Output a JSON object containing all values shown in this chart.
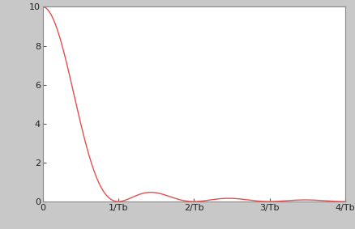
{
  "xlim": [
    0,
    4
  ],
  "ylim": [
    0,
    10
  ],
  "line_color": "#e05050",
  "line_width": 1.0,
  "background_color": "#c8c8c8",
  "plot_bg_color": "#ffffff",
  "yticks": [
    0,
    2,
    4,
    6,
    8,
    10
  ],
  "xtick_labels": [
    "0",
    "1/Tb",
    "2/Tb",
    "3/Tb",
    "4/Tb"
  ],
  "xtick_positions": [
    0,
    1,
    2,
    3,
    4
  ],
  "figsize": [
    4.39,
    2.83
  ],
  "dpi": 100
}
